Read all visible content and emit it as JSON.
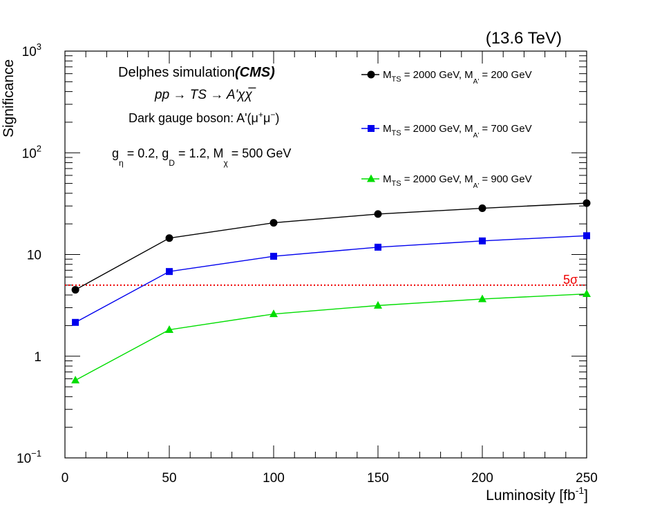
{
  "chart_data": {
    "type": "line",
    "energy": "(13.6 TeV)",
    "xlabel": "Luminosity [fb",
    "xlabel_sup": "-1",
    "xlabel_end": "]",
    "ylabel": "Significance",
    "xlim": [
      0,
      250
    ],
    "ylim": [
      0.1,
      1000
    ],
    "yscale": "log",
    "x_ticks": [
      0,
      50,
      100,
      150,
      200,
      250
    ],
    "x_tick_labels": [
      "0",
      "50",
      "100",
      "150",
      "200",
      "250"
    ],
    "y_ticks": [
      {
        "value": 0.1,
        "base": "10",
        "exp": "−1"
      },
      {
        "value": 1,
        "base": "1",
        "exp": ""
      },
      {
        "value": 10,
        "base": "10",
        "exp": ""
      },
      {
        "value": 100,
        "base": "10",
        "exp": "2"
      },
      {
        "value": 1000,
        "base": "10",
        "exp": "3"
      }
    ],
    "x": [
      5,
      50,
      100,
      150,
      200,
      250
    ],
    "series": [
      {
        "name": "M_TS = 2000 GeV, M_A' = 200 GeV",
        "color": "#000000",
        "marker": "circle",
        "values": [
          4.5,
          14.5,
          20.5,
          25,
          28.5,
          32
        ],
        "legend": {
          "m1": "M",
          "s1": "TS",
          "t1": " = 2000 GeV, M",
          "s2": "A'",
          "t2": " = 200 GeV"
        }
      },
      {
        "name": "M_TS = 2000 GeV, M_A' = 700 GeV",
        "color": "#0000ee",
        "marker": "square",
        "values": [
          2.15,
          6.8,
          9.6,
          11.8,
          13.6,
          15.3
        ],
        "legend": {
          "m1": "M",
          "s1": "TS",
          "t1": " = 2000 GeV, M",
          "s2": "A'",
          "t2": " = 700 GeV"
        }
      },
      {
        "name": "M_TS = 2000 GeV, M_A' = 900 GeV",
        "color": "#00dd00",
        "marker": "triangle",
        "values": [
          0.58,
          1.82,
          2.6,
          3.15,
          3.65,
          4.1
        ],
        "legend": {
          "m1": "M",
          "s1": "TS",
          "t1": " = 2000 GeV, M",
          "s2": "A'",
          "t2": " = 900 GeV"
        }
      }
    ],
    "reference_line": {
      "value": 5,
      "label": "5σ",
      "color": "#ee0000"
    },
    "annotations": {
      "line1_a": "Delphes simulation",
      "line1_b": "(CMS)",
      "line2": "pp → TS → A'χχ̅",
      "line3_a": "Dark gauge boson: A'(μ",
      "line3_sup1": "+",
      "line3_b": "μ",
      "line3_sup2": "−",
      "line3_c": ")",
      "line4": {
        "g": "g",
        "s1": "η",
        "t1": " = 0.2, g",
        "s2": "D",
        "t2": " = 1.2, M",
        "s3": "χ",
        "t3": " = 500 GeV"
      }
    }
  }
}
